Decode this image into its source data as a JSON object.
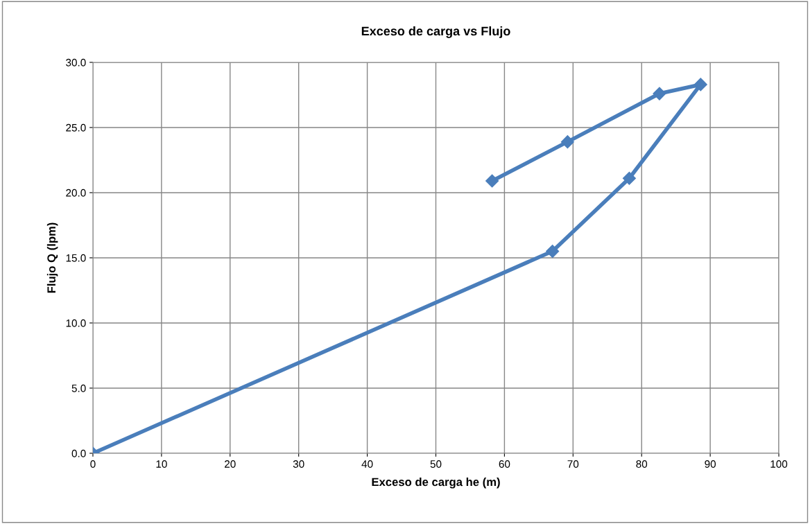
{
  "chart_data": {
    "type": "line",
    "title": "Exceso de carga vs Flujo",
    "xlabel": "Exceso de carga he (m)",
    "ylabel": "Flujo Q (lpm)",
    "series": [
      {
        "color": "#4a7ebb",
        "x": [
          0,
          67.0,
          78.2,
          88.6,
          82.6,
          69.2,
          58.2
        ],
        "values": [
          0,
          15.5,
          21.1,
          28.3,
          27.6,
          23.9,
          20.9
        ]
      }
    ],
    "xlim": [
      0,
      100
    ],
    "xticks": [
      0,
      10,
      20,
      30,
      40,
      50,
      60,
      70,
      80,
      90,
      100
    ],
    "ylim": [
      0,
      30
    ],
    "yticks": [
      {
        "value": 0,
        "label": "0.0"
      },
      {
        "value": 5,
        "label": "5.0"
      },
      {
        "value": 10,
        "label": "10.0"
      },
      {
        "value": 15,
        "label": "15.0"
      },
      {
        "value": 20,
        "label": "20.0"
      },
      {
        "value": 25,
        "label": "25.0"
      },
      {
        "value": 30,
        "label": "30.0"
      }
    ],
    "grid": true,
    "marker": "diamond",
    "line_style": "solid",
    "legend": false
  }
}
